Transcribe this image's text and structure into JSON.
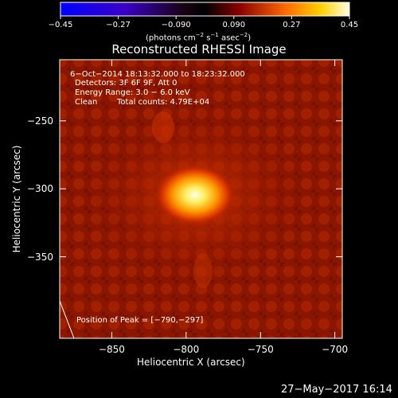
{
  "chart_data": {
    "type": "heatmap",
    "title": "Reconstructed RHESSI Image",
    "xlabel": "Heliocentric X (arcsec)",
    "ylabel": "Heliocentric Y (arcsec)",
    "xlim": [
      -885,
      -695
    ],
    "ylim": [
      -410,
      -205
    ],
    "x_ticks": [
      -850,
      -800,
      -750,
      -700
    ],
    "x_tick_labels": [
      "−850",
      "−800",
      "−750",
      "−700"
    ],
    "y_ticks": [
      -250,
      -300,
      -350
    ],
    "y_tick_labels": [
      "−250",
      "−300",
      "−350"
    ],
    "colorbar": {
      "ticks": [
        -0.45,
        -0.27,
        -0.09,
        0.09,
        0.27,
        0.45
      ],
      "tick_labels": [
        "−0.45",
        "−0.27",
        "−0.090",
        "0.090",
        "0.27",
        "0.45"
      ],
      "range": [
        -0.45,
        0.45
      ],
      "units_text": "(photons cm",
      "units_exp1": "−2",
      "units_mid": " s",
      "units_exp2": "−1",
      "units_mid2": " asec",
      "units_exp3": "−2",
      "units_end": ")"
    },
    "peak": {
      "x": -790,
      "y": -297
    },
    "grid": false
  },
  "info": {
    "time_range": "6−Oct−2014 18:13:32.000 to 18:23:32.000",
    "detectors": "Detectors: 3F 6F 9F, Att 0",
    "energy_range": "Energy Range: 3.0 − 6.0 keV",
    "method": "Clean",
    "total_counts": "Total counts: 4.79E+04",
    "peak_label": "Position of Peak = [−790,−297]"
  },
  "footer": {
    "date": "27−May−2017 16:14"
  },
  "colors": {
    "axis": "#ffffff",
    "background": "#000000"
  }
}
